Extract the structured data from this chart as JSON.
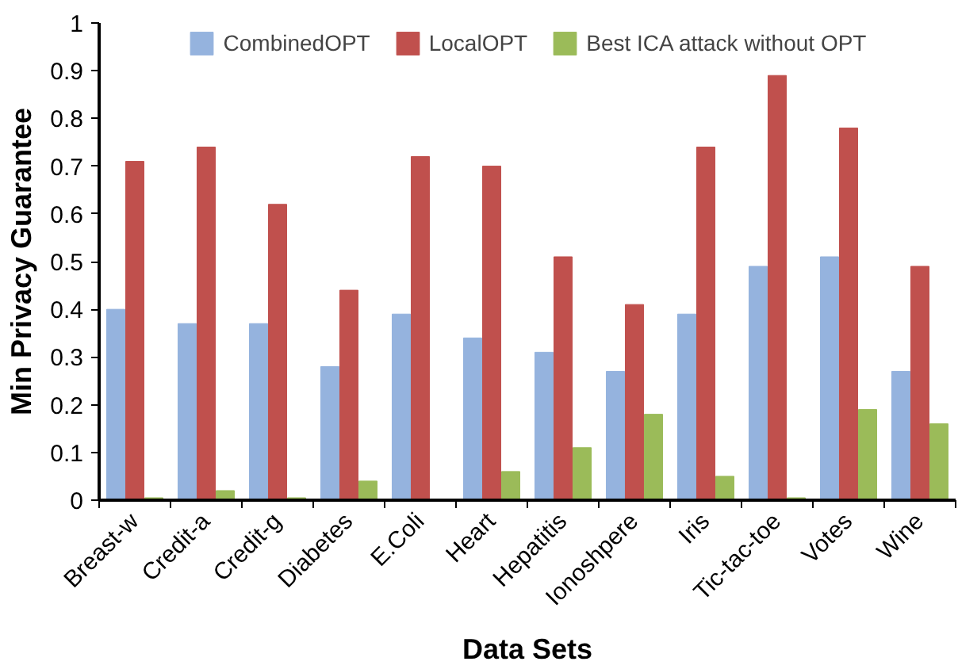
{
  "chart_data": {
    "type": "bar",
    "xlabel": "Data Sets",
    "ylabel": "Min Privacy Guarantee",
    "categories": [
      "Breast-w",
      "Credit-a",
      "Credit-g",
      "Diabetes",
      "E.Coli",
      "Heart",
      "Hepatitis",
      "Ionoshpere",
      "Iris",
      "Tic-tac-toe",
      "Votes",
      "Wine"
    ],
    "series": [
      {
        "name": "CombinedOPT",
        "color": "#95b3de",
        "values": [
          0.4,
          0.37,
          0.37,
          0.28,
          0.39,
          0.34,
          0.31,
          0.27,
          0.39,
          0.49,
          0.51,
          0.27
        ]
      },
      {
        "name": "LocalOPT",
        "color": "#c0504d",
        "values": [
          0.71,
          0.74,
          0.62,
          0.44,
          0.72,
          0.7,
          0.51,
          0.41,
          0.74,
          0.89,
          0.78,
          0.49
        ]
      },
      {
        "name": "Best ICA attack without OPT",
        "color": "#9bbb59",
        "values": [
          0.005,
          0.02,
          0.005,
          0.04,
          null,
          0.06,
          0.11,
          0.18,
          0.05,
          0.005,
          0.19,
          0.16
        ]
      }
    ],
    "ylim": [
      0,
      1
    ],
    "yticks": [
      0,
      0.1,
      0.2,
      0.3,
      0.4,
      0.5,
      0.6,
      0.7,
      0.8,
      0.9,
      1
    ],
    "grid": false,
    "legend": "top"
  }
}
